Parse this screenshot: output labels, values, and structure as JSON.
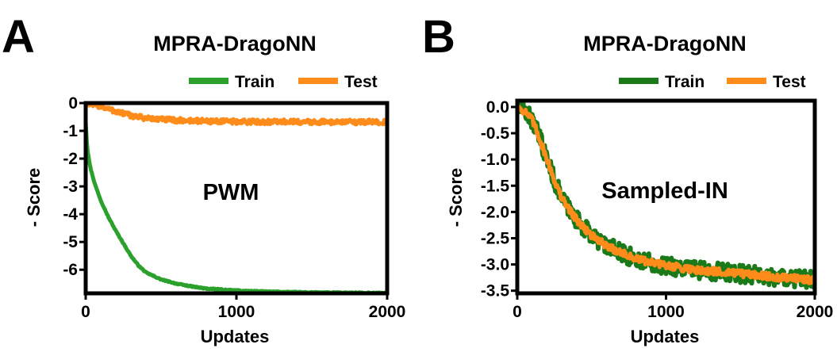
{
  "colors": {
    "train": "#2ca02c",
    "train_dark": "#1a7a1a",
    "test": "#ff8c1a"
  },
  "chart_data": [
    {
      "panel": "A",
      "type": "line",
      "title": "MPRA-DragoNN",
      "annotation": "PWM",
      "xlabel": "Updates",
      "ylabel": "- Score",
      "xlim": [
        0,
        2000
      ],
      "ylim": [
        -6.85,
        0
      ],
      "xticks": [
        0,
        1000,
        2000
      ],
      "xtick_labels": [
        "0",
        "1000",
        "2000"
      ],
      "yticks": [
        0,
        -1,
        -2,
        -3,
        -4,
        -5,
        -6
      ],
      "ytick_labels": [
        "0",
        "-1",
        "-2",
        "-3",
        "-4",
        "-5",
        "-6"
      ],
      "legend": {
        "placement": "top-right",
        "entries": [
          "Train",
          "Test"
        ]
      },
      "series": [
        {
          "name": "Train",
          "color": "train",
          "noise": 0.02,
          "x": [
            0,
            10,
            30,
            60,
            100,
            150,
            200,
            250,
            300,
            350,
            400,
            500,
            600,
            700,
            800,
            1000,
            1200,
            1500,
            2000
          ],
          "y": [
            -0.7,
            -1.6,
            -2.3,
            -2.9,
            -3.5,
            -4.1,
            -4.6,
            -5.05,
            -5.5,
            -5.85,
            -6.1,
            -6.35,
            -6.5,
            -6.6,
            -6.68,
            -6.75,
            -6.79,
            -6.82,
            -6.84
          ]
        },
        {
          "name": "Test",
          "color": "test",
          "noise": 0.09,
          "x": [
            0,
            100,
            200,
            300,
            400,
            600,
            800,
            1000,
            1500,
            2000
          ],
          "y": [
            0,
            -0.12,
            -0.3,
            -0.45,
            -0.55,
            -0.62,
            -0.65,
            -0.67,
            -0.68,
            -0.68
          ]
        }
      ]
    },
    {
      "panel": "B",
      "type": "line",
      "title": "MPRA-DragoNN",
      "annotation": "Sampled-IN",
      "xlabel": "Updates",
      "ylabel": "- Score",
      "xlim": [
        0,
        2000
      ],
      "ylim": [
        -3.55,
        0.12
      ],
      "xticks": [
        0,
        1000,
        2000
      ],
      "xtick_labels": [
        "0",
        "1000",
        "2000"
      ],
      "yticks": [
        0.0,
        -0.5,
        -1.0,
        -1.5,
        -2.0,
        -2.5,
        -3.0,
        -3.5
      ],
      "ytick_labels": [
        "0.0",
        "-0.5",
        "-1.0",
        "-1.5",
        "-2.0",
        "-2.5",
        "-3.0",
        "-3.5"
      ],
      "legend": {
        "placement": "top-right",
        "entries": [
          "Train",
          "Test"
        ]
      },
      "series": [
        {
          "name": "Train",
          "color": "train_dark",
          "noise": 0.17,
          "x": [
            0,
            50,
            100,
            150,
            200,
            250,
            300,
            400,
            500,
            600,
            800,
            1000,
            1200,
            1500,
            1800,
            2000
          ],
          "y": [
            0,
            -0.08,
            -0.25,
            -0.6,
            -1.0,
            -1.4,
            -1.75,
            -2.15,
            -2.45,
            -2.65,
            -2.9,
            -3.02,
            -3.1,
            -3.18,
            -3.25,
            -3.3
          ]
        },
        {
          "name": "Test",
          "color": "test",
          "noise": 0.07,
          "x": [
            0,
            50,
            100,
            150,
            200,
            250,
            300,
            400,
            500,
            600,
            800,
            1000,
            1200,
            1500,
            1800,
            2000
          ],
          "y": [
            0,
            -0.08,
            -0.25,
            -0.6,
            -1.0,
            -1.4,
            -1.75,
            -2.15,
            -2.45,
            -2.65,
            -2.9,
            -3.02,
            -3.1,
            -3.18,
            -3.25,
            -3.3
          ]
        }
      ]
    }
  ]
}
